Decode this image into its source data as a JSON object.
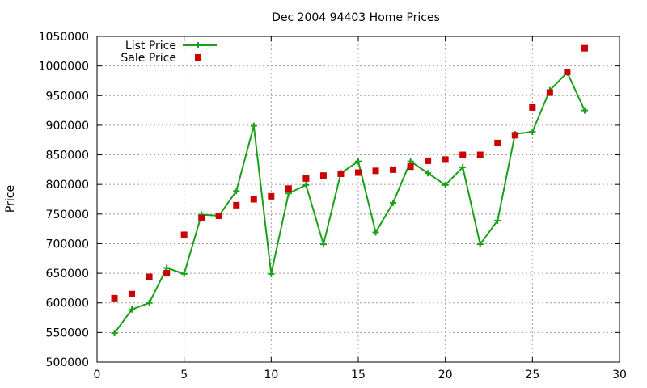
{
  "chart_data": {
    "type": "line",
    "title": "Dec 2004 94403 Home Prices",
    "xlabel": "",
    "ylabel": "Price",
    "xlim": [
      0,
      30
    ],
    "ylim": [
      500000,
      1050000
    ],
    "xticks": [
      0,
      5,
      10,
      15,
      20,
      25,
      30
    ],
    "yticks": [
      500000,
      550000,
      600000,
      650000,
      700000,
      750000,
      800000,
      850000,
      900000,
      950000,
      1000000,
      1050000
    ],
    "grid": true,
    "legend_position": "top-left",
    "series": [
      {
        "name": "List Price",
        "style": "line+points",
        "marker": "plus",
        "color": "#1aa01a",
        "x": [
          1,
          2,
          3,
          4,
          5,
          6,
          7,
          8,
          9,
          10,
          11,
          12,
          13,
          14,
          15,
          16,
          17,
          18,
          19,
          20,
          21,
          22,
          23,
          24,
          25,
          26,
          27,
          28
        ],
        "y": [
          549000,
          589000,
          600000,
          659000,
          649000,
          749000,
          747000,
          789000,
          899000,
          649000,
          785000,
          799000,
          699000,
          819000,
          839000,
          719000,
          769000,
          839000,
          819000,
          799000,
          829000,
          699000,
          739000,
          885000,
          889000,
          959000,
          989000,
          925000
        ]
      },
      {
        "name": "Sale Price",
        "style": "points",
        "marker": "square",
        "color": "#cc0000",
        "x": [
          1,
          2,
          3,
          4,
          5,
          6,
          7,
          8,
          9,
          10,
          11,
          12,
          13,
          14,
          15,
          16,
          17,
          18,
          19,
          20,
          21,
          22,
          23,
          24,
          25,
          26,
          27,
          28
        ],
        "y": [
          608000,
          615000,
          644000,
          650000,
          715000,
          743000,
          747000,
          765000,
          775000,
          780000,
          793000,
          810000,
          815000,
          818000,
          820000,
          823000,
          825000,
          830000,
          840000,
          842000,
          850000,
          850000,
          870000,
          883000,
          930000,
          955000,
          990000,
          1030000
        ]
      }
    ]
  }
}
